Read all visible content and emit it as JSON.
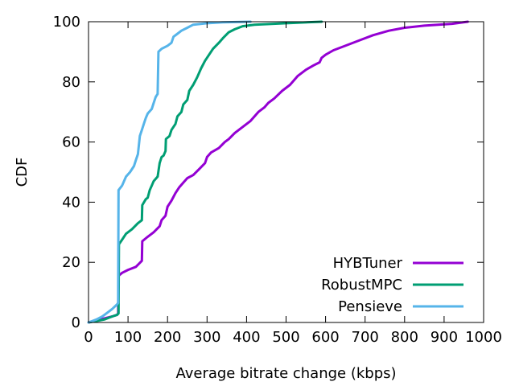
{
  "chart_data": {
    "type": "line",
    "title": "",
    "xlabel": "Average bitrate change (kbps)",
    "ylabel": "CDF",
    "xlim": [
      0,
      1000
    ],
    "ylim": [
      0,
      100
    ],
    "x_ticks": [
      "0",
      "100",
      "200",
      "300",
      "400",
      "500",
      "600",
      "700",
      "800",
      "900",
      "1000"
    ],
    "y_ticks": [
      "0",
      "20",
      "40",
      "60",
      "80",
      "100"
    ],
    "grid": false,
    "legend_position": "bottom-right",
    "series": [
      {
        "name": "HYBTuner",
        "color": "#9400d3",
        "points": [
          [
            0,
            0
          ],
          [
            30,
            1
          ],
          [
            60,
            2
          ],
          [
            72,
            2.5
          ],
          [
            75,
            3
          ],
          [
            76,
            15.5
          ],
          [
            85,
            16.5
          ],
          [
            100,
            17.5
          ],
          [
            120,
            18.5
          ],
          [
            135,
            20.5
          ],
          [
            136,
            27
          ],
          [
            150,
            28.5
          ],
          [
            165,
            30
          ],
          [
            180,
            32
          ],
          [
            185,
            34
          ],
          [
            195,
            35.5
          ],
          [
            200,
            38.5
          ],
          [
            210,
            40.5
          ],
          [
            220,
            43
          ],
          [
            230,
            45
          ],
          [
            240,
            46.5
          ],
          [
            250,
            48
          ],
          [
            265,
            49
          ],
          [
            280,
            51
          ],
          [
            295,
            53
          ],
          [
            300,
            55
          ],
          [
            310,
            56.5
          ],
          [
            330,
            58
          ],
          [
            345,
            60
          ],
          [
            355,
            61
          ],
          [
            370,
            63
          ],
          [
            390,
            65
          ],
          [
            410,
            67
          ],
          [
            430,
            70
          ],
          [
            445,
            71.5
          ],
          [
            455,
            73
          ],
          [
            470,
            74.5
          ],
          [
            490,
            77
          ],
          [
            510,
            79
          ],
          [
            530,
            82
          ],
          [
            550,
            84
          ],
          [
            570,
            85.5
          ],
          [
            585,
            86.5
          ],
          [
            590,
            88
          ],
          [
            600,
            89
          ],
          [
            620,
            90.5
          ],
          [
            650,
            92
          ],
          [
            690,
            94
          ],
          [
            720,
            95.5
          ],
          [
            760,
            97
          ],
          [
            800,
            98
          ],
          [
            850,
            98.7
          ],
          [
            920,
            99.3
          ],
          [
            960,
            100
          ]
        ]
      },
      {
        "name": "RobustMPC",
        "color": "#009e73",
        "points": [
          [
            0,
            0
          ],
          [
            40,
            1
          ],
          [
            60,
            2
          ],
          [
            72,
            2.5
          ],
          [
            76,
            3
          ],
          [
            77,
            26
          ],
          [
            85,
            27.5
          ],
          [
            95,
            29.5
          ],
          [
            110,
            31
          ],
          [
            125,
            33
          ],
          [
            135,
            34
          ],
          [
            136,
            39
          ],
          [
            145,
            41
          ],
          [
            150,
            41.5
          ],
          [
            155,
            44
          ],
          [
            160,
            45.5
          ],
          [
            165,
            47
          ],
          [
            175,
            48.5
          ],
          [
            180,
            53
          ],
          [
            185,
            55
          ],
          [
            190,
            55.5
          ],
          [
            195,
            57
          ],
          [
            196,
            61
          ],
          [
            205,
            62
          ],
          [
            210,
            64
          ],
          [
            220,
            66
          ],
          [
            225,
            68.5
          ],
          [
            235,
            70
          ],
          [
            240,
            72.5
          ],
          [
            250,
            74
          ],
          [
            255,
            77
          ],
          [
            265,
            79
          ],
          [
            275,
            81.5
          ],
          [
            285,
            84.5
          ],
          [
            295,
            87
          ],
          [
            305,
            89
          ],
          [
            315,
            91
          ],
          [
            330,
            93
          ],
          [
            340,
            94.5
          ],
          [
            355,
            96.5
          ],
          [
            370,
            97.5
          ],
          [
            390,
            98.5
          ],
          [
            420,
            99
          ],
          [
            500,
            99.5
          ],
          [
            590,
            100
          ]
        ]
      },
      {
        "name": "Pensieve",
        "color": "#56b4e9",
        "points": [
          [
            0,
            0
          ],
          [
            20,
            1
          ],
          [
            35,
            2
          ],
          [
            50,
            3.5
          ],
          [
            60,
            4.5
          ],
          [
            72,
            6
          ],
          [
            75,
            6.5
          ],
          [
            76,
            44
          ],
          [
            85,
            45.5
          ],
          [
            95,
            48.5
          ],
          [
            105,
            50
          ],
          [
            115,
            52
          ],
          [
            120,
            54
          ],
          [
            125,
            56
          ],
          [
            130,
            62
          ],
          [
            135,
            64
          ],
          [
            140,
            66
          ],
          [
            145,
            68
          ],
          [
            150,
            69.5
          ],
          [
            160,
            71
          ],
          [
            165,
            73
          ],
          [
            170,
            75
          ],
          [
            175,
            76
          ],
          [
            177,
            90
          ],
          [
            185,
            91
          ],
          [
            200,
            92
          ],
          [
            210,
            93
          ],
          [
            215,
            95
          ],
          [
            225,
            96
          ],
          [
            235,
            97
          ],
          [
            250,
            98
          ],
          [
            265,
            99
          ],
          [
            300,
            99.5
          ],
          [
            340,
            99.8
          ],
          [
            410,
            100
          ]
        ]
      }
    ]
  }
}
